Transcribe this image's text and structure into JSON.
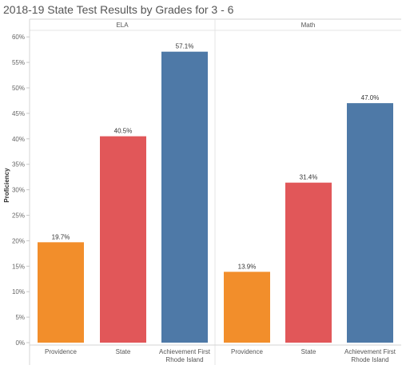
{
  "chart_data": {
    "type": "bar",
    "title": "2018-19 State Test Results by  Grades for  3 - 6",
    "ylabel": "Proficiency",
    "xlabel": "",
    "ylim": [
      0,
      62
    ],
    "yticks": [
      "0%",
      "5%",
      "10%",
      "15%",
      "20%",
      "25%",
      "30%",
      "35%",
      "40%",
      "45%",
      "50%",
      "55%",
      "60%"
    ],
    "grid": false,
    "categories": [
      [
        "Providence"
      ],
      [
        "State"
      ],
      [
        "Achievement First",
        "Rhode Island"
      ]
    ],
    "colors": [
      "#f28e2b",
      "#e15759",
      "#4e79a7"
    ],
    "panels": [
      {
        "header": "ELA",
        "values": [
          19.7,
          40.5,
          57.1
        ],
        "labels": [
          "19.7%",
          "40.5%",
          "57.1%"
        ]
      },
      {
        "header": "Math",
        "values": [
          13.9,
          31.4,
          47.0
        ],
        "labels": [
          "13.9%",
          "31.4%",
          "47.0%"
        ]
      }
    ]
  }
}
